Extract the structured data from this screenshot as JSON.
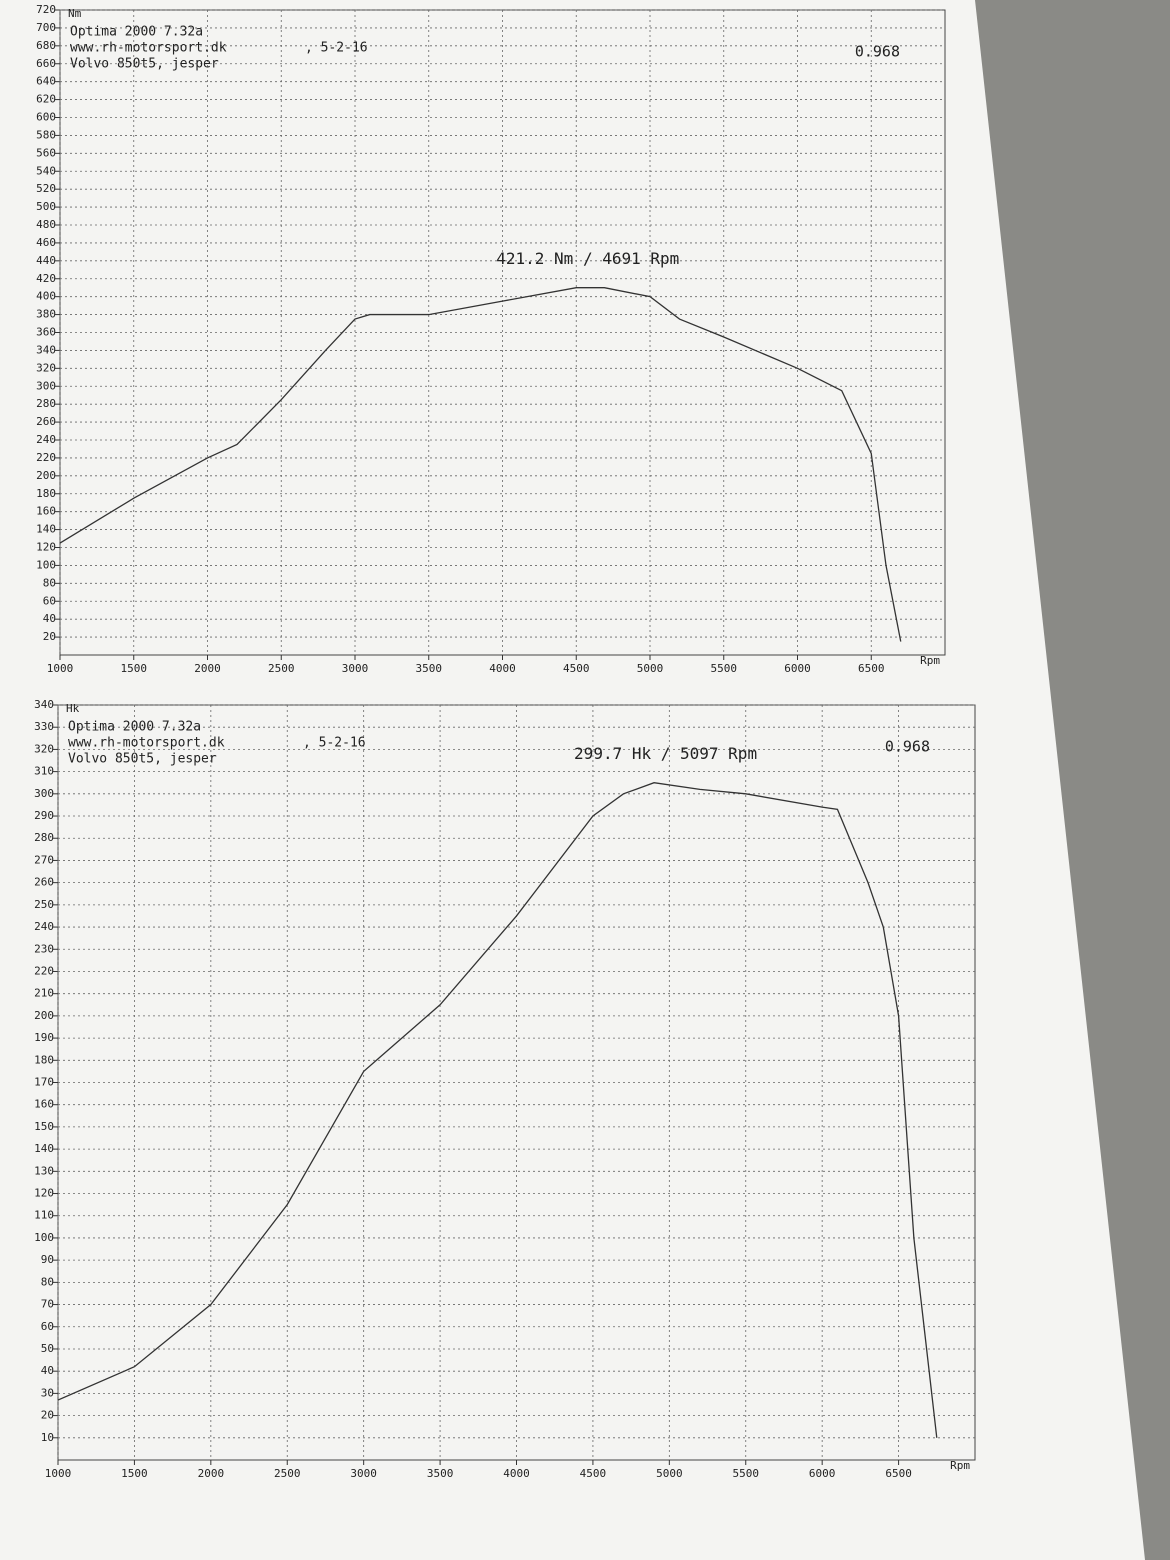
{
  "chart_data": [
    {
      "type": "line",
      "ylabel": "Nm",
      "xlabel": "Rpm",
      "notes": [
        "Optima 2000 7.32a",
        "www.rh-motorsport.dk",
        ", 5-2-16",
        "Volvo 850t5, jesper"
      ],
      "factor": "0.968",
      "peak_label": "421.2 Nm / 4691 Rpm",
      "x": [
        1000,
        1500,
        2000,
        2200,
        2500,
        2800,
        3000,
        3100,
        3500,
        4000,
        4500,
        4691,
        5000,
        5200,
        5500,
        6000,
        6300,
        6500,
        6600,
        6700
      ],
      "values": [
        125,
        175,
        220,
        235,
        285,
        340,
        375,
        380,
        380,
        395,
        410,
        410,
        400,
        375,
        355,
        320,
        295,
        225,
        100,
        15
      ],
      "color": "#333333",
      "xlim": [
        1000,
        7000
      ],
      "xticks": [
        1000,
        1500,
        2000,
        2500,
        3000,
        3500,
        4000,
        4500,
        5000,
        5500,
        6000,
        6500
      ],
      "ylim": [
        0,
        720
      ],
      "yticks": [
        20,
        40,
        60,
        80,
        100,
        120,
        140,
        160,
        180,
        200,
        220,
        240,
        260,
        280,
        300,
        320,
        340,
        360,
        380,
        400,
        420,
        440,
        460,
        480,
        500,
        520,
        540,
        560,
        580,
        600,
        620,
        640,
        660,
        680,
        700,
        720
      ],
      "grid": true
    },
    {
      "type": "line",
      "ylabel": "Hk",
      "xlabel": "Rpm",
      "notes": [
        "Optima 2000 7.32a",
        "www.rh-motorsport.dk",
        ", 5-2-16",
        "Volvo 850t5, jesper"
      ],
      "factor": "0.968",
      "peak_label": "299.7 Hk / 5097 Rpm",
      "x": [
        1000,
        1500,
        2000,
        2500,
        3000,
        3500,
        4000,
        4500,
        4700,
        4900,
        5200,
        5500,
        6000,
        6100,
        6300,
        6400,
        6500,
        6600,
        6700,
        6750
      ],
      "values": [
        27,
        42,
        70,
        115,
        175,
        205,
        245,
        290,
        300,
        305,
        302,
        300,
        294,
        293,
        260,
        240,
        200,
        100,
        40,
        10
      ],
      "color": "#333333",
      "xlim": [
        1000,
        7000
      ],
      "xticks": [
        1000,
        1500,
        2000,
        2500,
        3000,
        3500,
        4000,
        4500,
        5000,
        5500,
        6000,
        6500
      ],
      "ylim": [
        0,
        340
      ],
      "yticks": [
        10,
        20,
        30,
        40,
        50,
        60,
        70,
        80,
        90,
        100,
        110,
        120,
        130,
        140,
        150,
        160,
        170,
        180,
        190,
        200,
        210,
        220,
        230,
        240,
        250,
        260,
        270,
        280,
        290,
        300,
        310,
        320,
        330,
        340
      ],
      "grid": true
    }
  ]
}
